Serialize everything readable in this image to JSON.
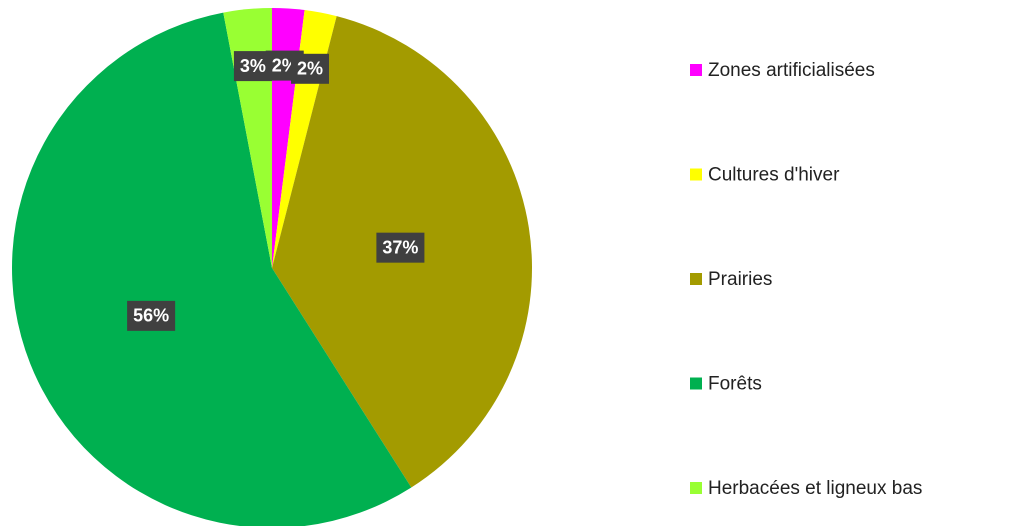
{
  "chart_data": {
    "type": "pie",
    "categories": [
      "Zones artificialisées",
      "Cultures d'hiver",
      "Prairies",
      "Forêts",
      "Herbacées et ligneux bas"
    ],
    "values": [
      2,
      2,
      37,
      56,
      3
    ],
    "value_labels": [
      "2%",
      "2%",
      "37%",
      "56%",
      "3%"
    ],
    "colors": [
      "#ff00ff",
      "#ffff00",
      "#a39b00",
      "#00b050",
      "#99ff33"
    ],
    "legend": "right"
  }
}
